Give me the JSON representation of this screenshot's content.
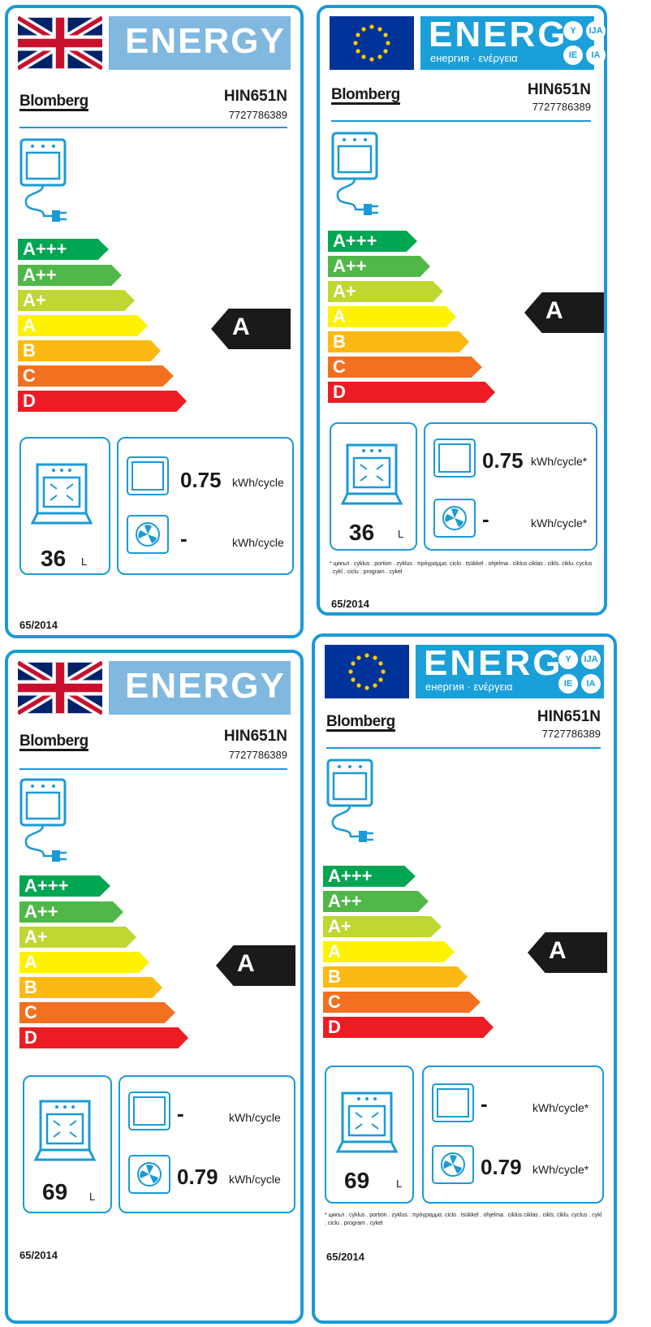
{
  "labels": [
    {
      "energy_word": "ENERGY",
      "brand": "Blomberg",
      "model": "HIN651N",
      "code": "7727786389",
      "classes": [
        "A+++",
        "A++",
        "A+",
        "A",
        "B",
        "C",
        "D"
      ],
      "rating": "A",
      "volume": "36",
      "volume_unit": "L",
      "conv_value": "0.75",
      "conv_unit": "kWh/cycle",
      "fan_value": "-",
      "fan_unit": "kWh/cycle",
      "regulation": "65/2014"
    },
    {
      "energy_word": "ENERG",
      "energy_sub": "енергия · ενέργεια",
      "langs": [
        "Y",
        "IJA",
        "IE",
        "IA"
      ],
      "brand": "Blomberg",
      "model": "HIN651N",
      "code": "7727786389",
      "classes": [
        "A+++",
        "A++",
        "A+",
        "A",
        "B",
        "C",
        "D"
      ],
      "rating": "A",
      "volume": "36",
      "volume_unit": "L",
      "conv_value": "0.75",
      "conv_unit": "kWh/cycle*",
      "fan_value": "-",
      "fan_unit": "kWh/cycle*",
      "footnote": "* цикъл . cyklus . portion . zyklus . πρόγραμμα. ciclo . tsükkel . ohjelma . ciklus ciklas . cikls. ċiklu. cyclus . cykl . ciclu . program . cykel",
      "regulation": "65/2014"
    },
    {
      "energy_word": "ENERGY",
      "brand": "Blomberg",
      "model": "HIN651N",
      "code": "7727786389",
      "classes": [
        "A+++",
        "A++",
        "A+",
        "A",
        "B",
        "C",
        "D"
      ],
      "rating": "A",
      "volume": "69",
      "volume_unit": "L",
      "conv_value": "-",
      "conv_unit": "kWh/cycle",
      "fan_value": "0.79",
      "fan_unit": "kWh/cycle",
      "regulation": "65/2014"
    },
    {
      "energy_word": "ENERG",
      "energy_sub": "енергия · ενέργεια",
      "langs": [
        "Y",
        "IJA",
        "IE",
        "IA"
      ],
      "brand": "Blomberg",
      "model": "HIN651N",
      "code": "7727786389",
      "classes": [
        "A+++",
        "A++",
        "A+",
        "A",
        "B",
        "C",
        "D"
      ],
      "rating": "A",
      "volume": "69",
      "volume_unit": "L",
      "conv_value": "-",
      "conv_unit": "kWh/cycle*",
      "fan_value": "0.79",
      "fan_unit": "kWh/cycle*",
      "footnote": "* цикъл . cyklus . portion . zyklus . πρόγραμμα. ciclo . tsükkel . ohjelma . ciklus ciklas . cikls. ċiklu. cyclus . cykl . ciclu . program . cykel",
      "regulation": "65/2014"
    }
  ],
  "class_colors": [
    "#00a651",
    "#50b848",
    "#bfd730",
    "#fff200",
    "#fdb913",
    "#f37021",
    "#ed1c24"
  ]
}
